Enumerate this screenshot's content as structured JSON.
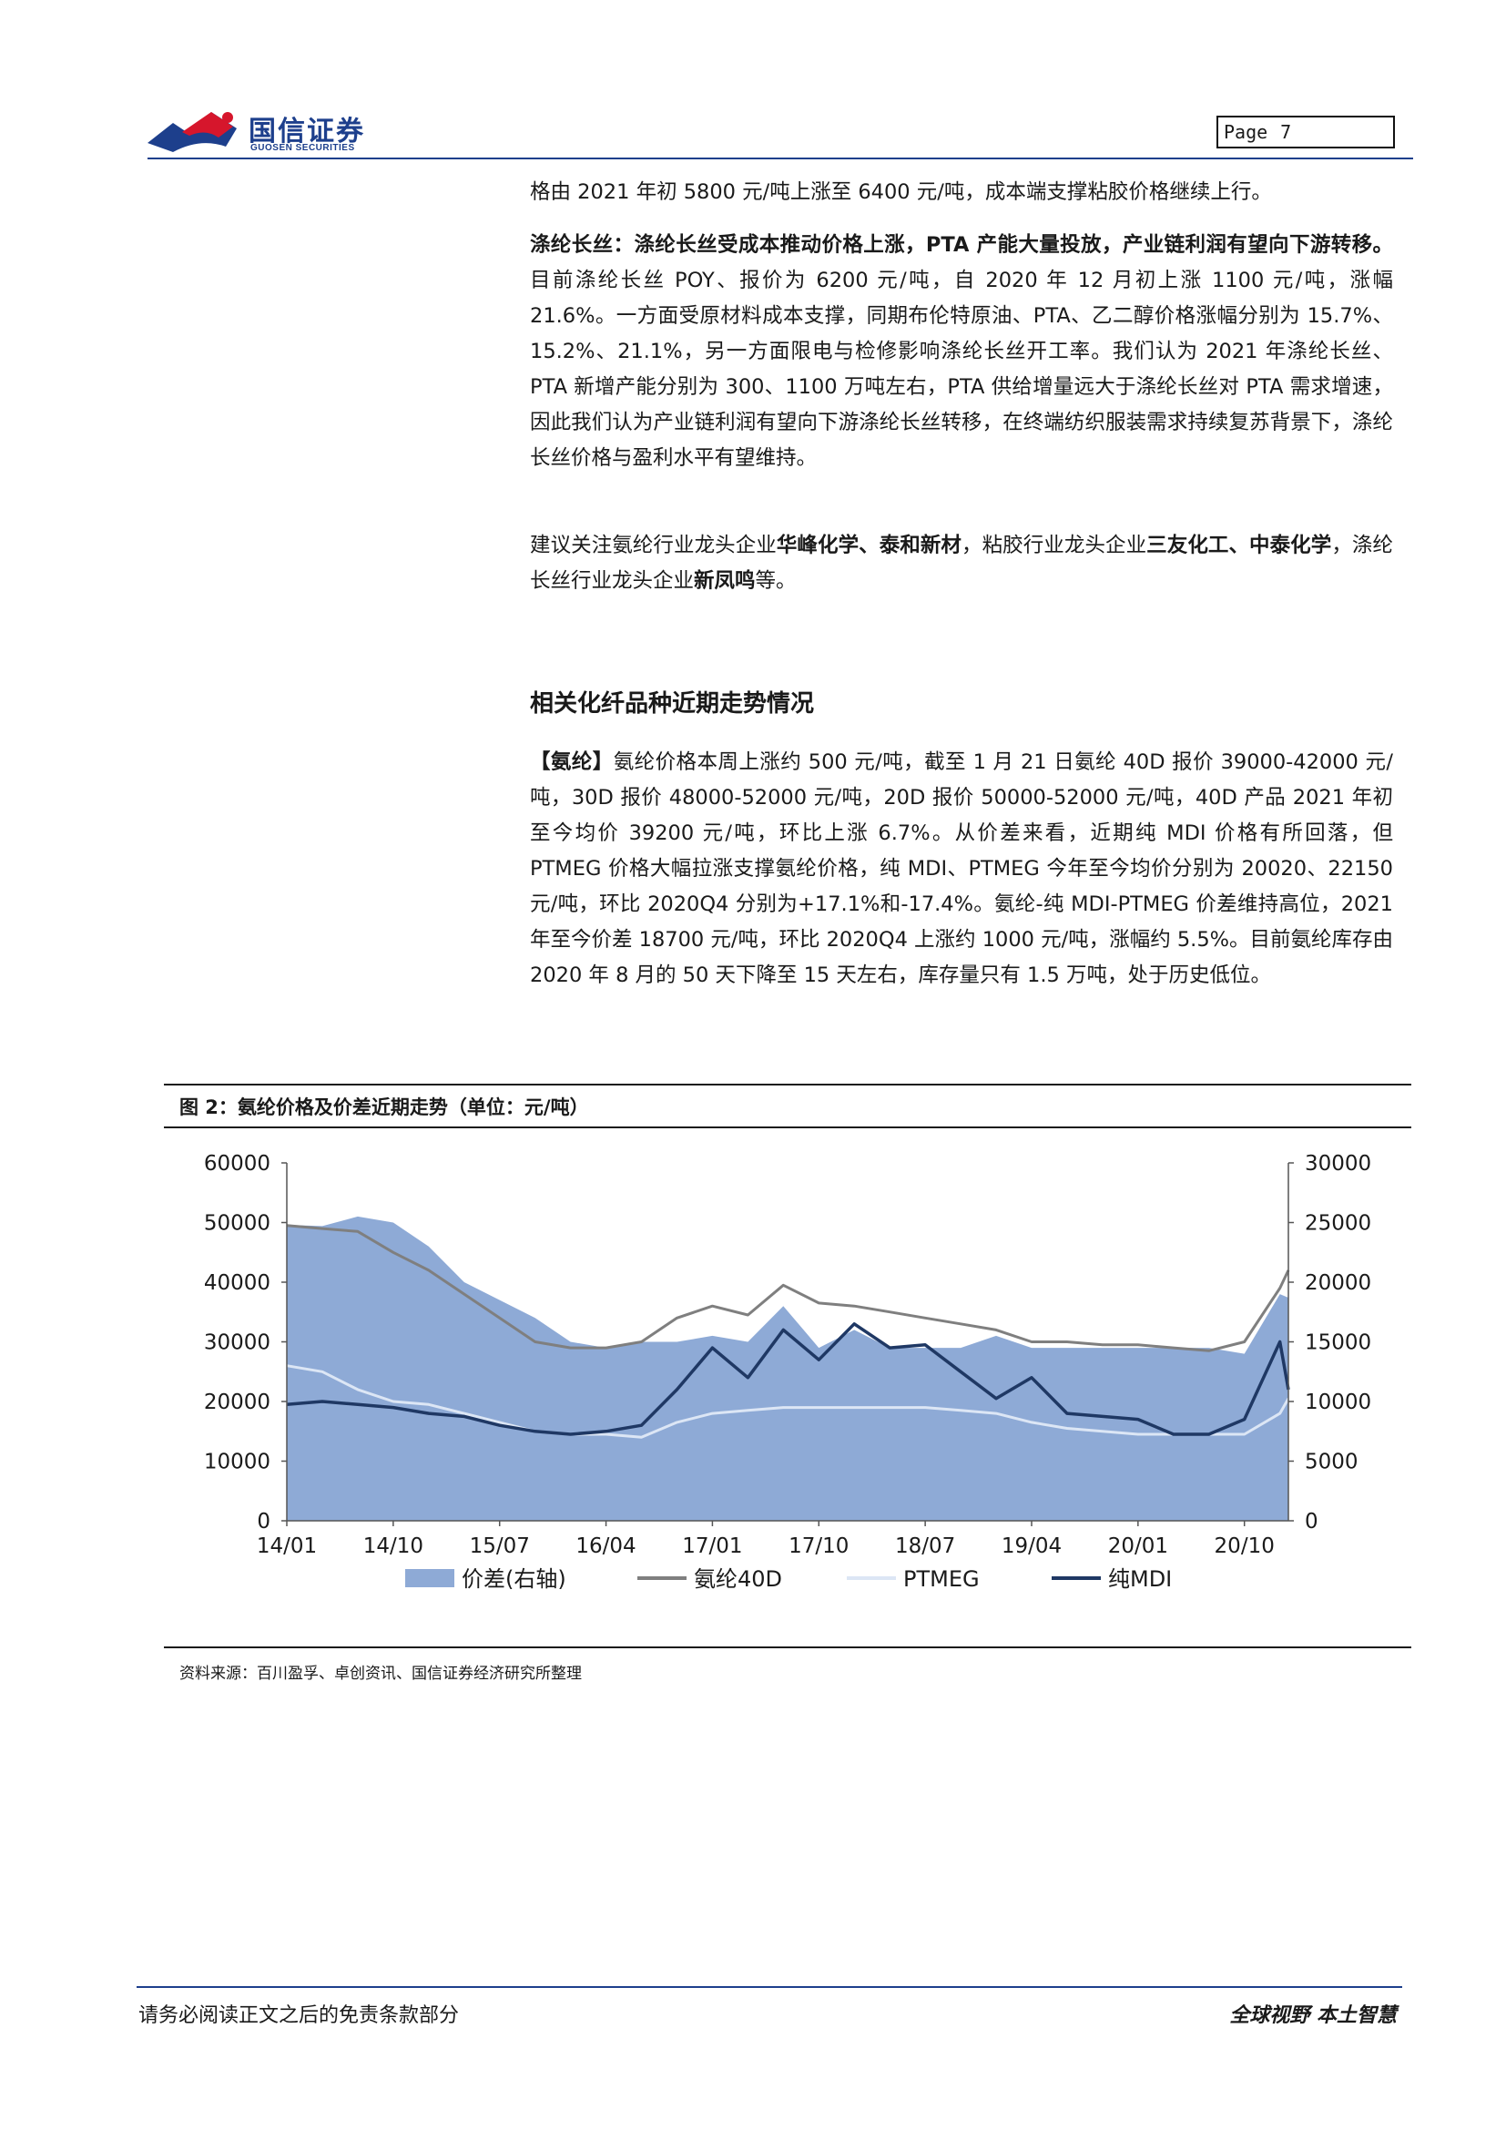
{
  "header": {
    "logo_cn": "国信证券",
    "logo_en": "GUOSEN SECURITIES",
    "page_label": "Page",
    "page_number": "7",
    "brand_color": "#1d3f8c",
    "accent_color": "#d6162c"
  },
  "body": {
    "p1": "格由 2021 年初 5800 元/吨上涨至 6400 元/吨，成本端支撑粘胶价格继续上行。",
    "p2_bold": "涤纶长丝：涤纶长丝受成本推动价格上涨，PTA 产能大量投放，产业链利润有望向下游转移。",
    "p2_rest": "目前涤纶长丝 POY、报价为 6200 元/吨，自 2020 年 12 月初上涨 1100 元/吨，涨幅 21.6%。一方面受原材料成本支撑，同期布伦特原油、PTA、乙二醇价格涨幅分别为 15.7%、15.2%、21.1%，另一方面限电与检修影响涤纶长丝开工率。我们认为 2021 年涤纶长丝、PTA 新增产能分别为 300、1100 万吨左右，PTA 供给增量远大于涤纶长丝对 PTA 需求增速，因此我们认为产业链利润有望向下游涤纶长丝转移，在终端纺织服装需求持续复苏背景下，涤纶长丝价格与盈利水平有望维持。",
    "p3_a": "建议关注氨纶行业龙头企业",
    "p3_b": "华峰化学、泰和新材",
    "p3_c": "，粘胶行业龙头企业",
    "p3_d": "三友化工、中泰化学",
    "p3_e": "，涤纶长丝行业龙头企业",
    "p3_f": "新凤鸣",
    "p3_g": "等。",
    "section_title": "相关化纤品种近期走势情况",
    "p4_bold": "【氨纶】",
    "p4_rest": "氨纶价格本周上涨约 500 元/吨，截至 1 月 21 日氨纶 40D 报价 39000-42000 元/吨，30D 报价 48000-52000 元/吨，20D 报价 50000-52000 元/吨，40D 产品 2021 年初至今均价 39200 元/吨，环比上涨 6.7%。从价差来看，近期纯 MDI 价格有所回落，但 PTMEG 价格大幅拉涨支撑氨纶价格，纯 MDI、PTMEG 今年至今均价分别为 20020、22150 元/吨，环比 2020Q4 分别为+17.1%和-17.4%。氨纶-纯 MDI-PTMEG 价差维持高位，2021 年至今价差 18700 元/吨，环比 2020Q4 上涨约 1000 元/吨，涨幅约 5.5%。目前氨纶库存由 2020 年 8 月的 50 天下降至 15 天左右，库存量只有 1.5 万吨，处于历史低位。"
  },
  "figure": {
    "title": "图 2：氨纶价格及价差近期走势（单位：元/吨）",
    "source": "资料来源：百川盈孚、卓创资讯、国信证券经济研究所整理"
  },
  "chart_data": {
    "type": "line",
    "x_ticks": [
      "14/01",
      "14/10",
      "15/07",
      "16/04",
      "17/01",
      "17/10",
      "18/07",
      "19/04",
      "20/01",
      "20/10"
    ],
    "x": [
      2014.0,
      2014.25,
      2014.5,
      2014.75,
      2015.0,
      2015.25,
      2015.5,
      2015.75,
      2016.0,
      2016.25,
      2016.5,
      2016.75,
      2017.0,
      2017.25,
      2017.5,
      2017.75,
      2018.0,
      2018.25,
      2018.5,
      2018.75,
      2019.0,
      2019.25,
      2019.5,
      2019.75,
      2020.0,
      2020.25,
      2020.5,
      2020.75,
      2021.0,
      2021.06
    ],
    "y_left_ticks": [
      0,
      10000,
      20000,
      30000,
      40000,
      50000,
      60000
    ],
    "y_left_range": [
      0,
      60000
    ],
    "y_right_ticks": [
      0,
      5000,
      10000,
      15000,
      20000,
      25000,
      30000
    ],
    "y_right_range": [
      0,
      30000
    ],
    "series": [
      {
        "name": "价差(右轴)",
        "axis": "right",
        "style": "area",
        "color": "#8eaad6",
        "values": [
          24800,
          24700,
          25500,
          25000,
          23000,
          20000,
          18500,
          17000,
          15000,
          14500,
          15000,
          15000,
          15500,
          15000,
          18000,
          14500,
          16000,
          14500,
          14500,
          14500,
          15500,
          14500,
          14500,
          14500,
          14500,
          14500,
          14500,
          14000,
          19000,
          18700
        ]
      },
      {
        "name": "氨纶40D",
        "axis": "left",
        "style": "line",
        "color": "#7f7f7f",
        "values": [
          49500,
          49000,
          48500,
          45000,
          42000,
          38000,
          34000,
          30000,
          29000,
          29000,
          30000,
          34000,
          36000,
          34500,
          39500,
          36500,
          36000,
          35000,
          34000,
          33000,
          32000,
          30000,
          30000,
          29500,
          29500,
          29000,
          28500,
          30000,
          39000,
          42000
        ]
      },
      {
        "name": "PTMEG",
        "axis": "left",
        "style": "line",
        "color": "#dce6f5",
        "values": [
          26000,
          25000,
          22000,
          20000,
          19500,
          18000,
          16500,
          15000,
          14500,
          14500,
          14000,
          16500,
          18000,
          18500,
          19000,
          19000,
          19000,
          19000,
          19000,
          18500,
          18000,
          16500,
          15500,
          15000,
          14500,
          14500,
          14500,
          14500,
          18000,
          20500
        ]
      },
      {
        "name": "纯MDI",
        "axis": "left",
        "style": "line",
        "color": "#1f3864",
        "values": [
          19500,
          20000,
          19500,
          19000,
          18000,
          17500,
          16000,
          15000,
          14500,
          15000,
          16000,
          22000,
          29000,
          24000,
          32000,
          27000,
          33000,
          29000,
          29500,
          25000,
          20500,
          24000,
          18000,
          17500,
          17000,
          14500,
          14500,
          17000,
          30000,
          22000
        ]
      }
    ],
    "legend_position": "bottom",
    "grid": false
  },
  "footer": {
    "disclaimer": "请务必阅读正文之后的免责条款部分",
    "slogan": "全球视野  本土智慧"
  }
}
